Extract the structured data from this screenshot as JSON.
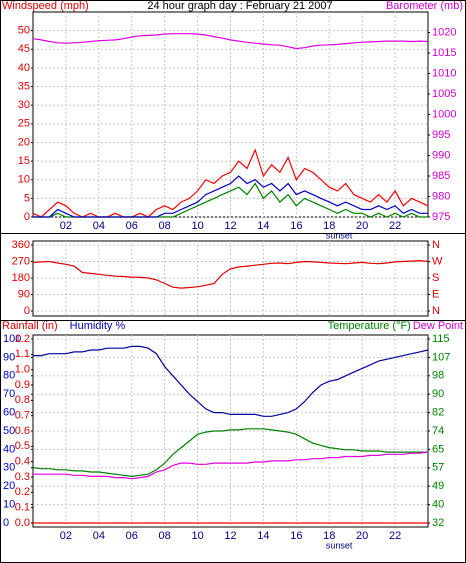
{
  "chart_data": [
    {
      "type": "line",
      "title": "24 hour graph day : February 21 2007",
      "labels": [
        {
          "text": "Windspeed (mph)",
          "color": "#e00000",
          "align": "left"
        },
        {
          "text": "Barometer (mb)",
          "color": "#d000d0",
          "align": "right"
        }
      ],
      "annotations": [
        {
          "text": "sunset",
          "x": 18.6
        }
      ],
      "x": [
        0,
        0.5,
        1,
        1.5,
        2,
        2.5,
        3,
        3.5,
        4,
        4.5,
        5,
        5.5,
        6,
        6.5,
        7,
        7.5,
        8,
        8.5,
        9,
        9.5,
        10,
        10.5,
        11,
        11.5,
        12,
        12.5,
        13,
        13.5,
        14,
        14.5,
        15,
        15.5,
        16,
        16.5,
        17,
        17.5,
        18,
        18.5,
        19,
        19.5,
        20,
        20.5,
        21,
        21.5,
        22,
        22.5,
        23,
        23.5,
        24
      ],
      "xlim": [
        0,
        24
      ],
      "xticks": [
        {
          "value": 2,
          "label": "02"
        },
        {
          "value": 4,
          "label": "04"
        },
        {
          "value": 6,
          "label": "06"
        },
        {
          "value": 8,
          "label": "08"
        },
        10,
        12,
        14,
        16,
        18,
        20,
        22
      ],
      "show_xtick_labels": true,
      "grid": true,
      "axes": [
        {
          "id": "wind",
          "side": "left",
          "color": "#e00000",
          "lim": [
            0,
            55
          ],
          "ticks": [
            0,
            5,
            10,
            15,
            20,
            25,
            30,
            35,
            40,
            45,
            50
          ]
        },
        {
          "id": "baro",
          "side": "right",
          "color": "#d000d0",
          "lim": [
            975,
            1025
          ],
          "ticks": [
            975,
            980,
            985,
            990,
            995,
            1000,
            1005,
            1010,
            1015,
            1020
          ]
        }
      ],
      "series": [
        {
          "axis": "wind",
          "color": "#ff0000",
          "values": [
            1,
            0,
            2,
            4,
            3,
            1,
            0,
            1,
            0,
            0,
            1,
            0,
            0,
            1,
            0,
            2,
            3,
            2,
            4,
            5,
            7,
            10,
            9,
            11,
            12,
            15,
            13,
            18,
            11,
            14,
            12,
            16,
            10,
            13,
            12,
            10,
            8,
            7,
            9,
            6,
            5,
            4,
            6,
            4,
            7,
            3,
            5,
            4,
            3
          ]
        },
        {
          "axis": "wind",
          "color": "#008000",
          "values": [
            0,
            0,
            0,
            1,
            0,
            0,
            0,
            0,
            0,
            0,
            0,
            0,
            0,
            0,
            0,
            0,
            0,
            0,
            1,
            2,
            3,
            4,
            5,
            6,
            7,
            8,
            6,
            9,
            5,
            7,
            4,
            6,
            3,
            5,
            4,
            3,
            2,
            1,
            2,
            1,
            1,
            0,
            1,
            0,
            1,
            0,
            1,
            0,
            0
          ]
        },
        {
          "axis": "wind",
          "color": "#0000c0",
          "values": [
            0,
            0,
            0,
            2,
            1,
            0,
            0,
            0,
            0,
            0,
            0,
            0,
            0,
            0,
            0,
            0,
            1,
            1,
            2,
            3,
            4,
            6,
            7,
            8,
            9,
            11,
            9,
            10,
            8,
            9,
            7,
            9,
            6,
            7,
            6,
            5,
            4,
            3,
            4,
            3,
            2,
            2,
            3,
            2,
            3,
            1,
            2,
            1,
            1
          ]
        },
        {
          "axis": "baro",
          "color": "#e000e0",
          "values": [
            1018.5,
            1018.2,
            1017.8,
            1017.5,
            1017.4,
            1017.5,
            1017.6,
            1017.8,
            1018.0,
            1018.1,
            1018.2,
            1018.5,
            1018.9,
            1019.2,
            1019.3,
            1019.4,
            1019.6,
            1019.7,
            1019.7,
            1019.7,
            1019.6,
            1019.4,
            1019.0,
            1018.6,
            1018.2,
            1017.9,
            1017.6,
            1017.4,
            1017.2,
            1017.0,
            1016.9,
            1016.5,
            1016.1,
            1016.3,
            1016.7,
            1016.9,
            1017.0,
            1017.1,
            1017.3,
            1017.5,
            1017.6,
            1017.7,
            1017.8,
            1017.9,
            1017.9,
            1017.9,
            1017.8,
            1017.9,
            1017.8
          ]
        }
      ]
    },
    {
      "type": "line",
      "x": [
        0,
        0.5,
        1,
        1.5,
        2,
        2.5,
        3,
        3.5,
        4,
        4.5,
        5,
        5.5,
        6,
        6.5,
        7,
        7.5,
        8,
        8.5,
        9,
        9.5,
        10,
        10.5,
        11,
        11.5,
        12,
        12.5,
        13,
        13.5,
        14,
        14.5,
        15,
        15.5,
        16,
        16.5,
        17,
        17.5,
        18,
        18.5,
        19,
        19.5,
        20,
        20.5,
        21,
        21.5,
        22,
        22.5,
        23,
        23.5,
        24
      ],
      "xlim": [
        0,
        24
      ],
      "xticks": [
        2,
        4,
        6,
        8,
        10,
        12,
        14,
        16,
        18,
        20,
        22
      ],
      "show_xtick_labels": false,
      "grid": true,
      "axes": [
        {
          "id": "dir",
          "side": "left",
          "color": "#e00000",
          "lim": [
            0,
            360
          ],
          "ticks": [
            0,
            90,
            180,
            270,
            360
          ]
        },
        {
          "id": "compass",
          "side": "right",
          "color": "#e00000",
          "lim": [
            0,
            360
          ],
          "ticks": [
            {
              "value": 0,
              "label": "N"
            },
            {
              "value": 90,
              "label": "E"
            },
            {
              "value": 180,
              "label": "S"
            },
            {
              "value": 270,
              "label": "W"
            },
            {
              "value": 360,
              "label": "N"
            }
          ]
        }
      ],
      "series": [
        {
          "axis": "dir",
          "color": "#e00000",
          "values": [
            265,
            268,
            270,
            262,
            255,
            245,
            210,
            205,
            200,
            195,
            190,
            188,
            185,
            183,
            180,
            170,
            150,
            130,
            125,
            128,
            132,
            140,
            150,
            200,
            230,
            240,
            245,
            250,
            255,
            260,
            262,
            258,
            265,
            270,
            268,
            265,
            262,
            260,
            258,
            262,
            265,
            260,
            258,
            262,
            268,
            270,
            272,
            275,
            270
          ]
        }
      ]
    },
    {
      "type": "line",
      "labels": [
        {
          "text": "Rainfall (in)",
          "color": "#e00000",
          "align": "left"
        },
        {
          "text": "Humidity %",
          "color": "#0000c0",
          "align": "left"
        },
        {
          "text": "Dew Point",
          "color": "#d000d0",
          "align": "right"
        },
        {
          "text": "Temperature (°F)",
          "color": "#008000",
          "align": "right"
        }
      ],
      "annotations": [
        {
          "text": "sunset",
          "x": 18.6
        }
      ],
      "x": [
        0,
        0.5,
        1,
        1.5,
        2,
        2.5,
        3,
        3.5,
        4,
        4.5,
        5,
        5.5,
        6,
        6.5,
        7,
        7.5,
        8,
        8.5,
        9,
        9.5,
        10,
        10.5,
        11,
        11.5,
        12,
        12.5,
        13,
        13.5,
        14,
        14.5,
        15,
        15.5,
        16,
        16.5,
        17,
        17.5,
        18,
        18.5,
        19,
        19.5,
        20,
        20.5,
        21,
        21.5,
        22,
        22.5,
        23,
        23.5,
        24
      ],
      "xlim": [
        0,
        24
      ],
      "xticks": [
        {
          "value": 2,
          "label": "02"
        },
        {
          "value": 4,
          "label": "04"
        },
        {
          "value": 6,
          "label": "06"
        },
        {
          "value": 8,
          "label": "08"
        },
        10,
        12,
        14,
        16,
        18,
        20,
        22
      ],
      "show_xtick_labels": true,
      "grid": true,
      "axes": [
        {
          "id": "hum",
          "side": "left",
          "color": "#0000c0",
          "lim": [
            0,
            100
          ],
          "ticks": [
            0,
            10,
            20,
            30,
            40,
            50,
            60,
            70,
            80,
            90,
            100
          ]
        },
        {
          "id": "rain",
          "side": "left",
          "color": "#e00000",
          "lim": [
            0,
            1.2
          ],
          "ticks": [
            {
              "value": 0,
              "label": "0.0"
            },
            0.1,
            0.2,
            0.3,
            0.4,
            0.5,
            0.6,
            0.7,
            0.8,
            0.9,
            {
              "value": 1,
              "label": "1.0"
            },
            1.1,
            1.2
          ]
        },
        {
          "id": "temp",
          "side": "right",
          "color": "#008000",
          "lim": [
            32,
            115
          ],
          "ticks": [
            32,
            {
              "value": 40.3,
              "label": "40"
            },
            {
              "value": 48.6,
              "label": "49"
            },
            {
              "value": 56.9,
              "label": "57"
            },
            {
              "value": 65.2,
              "label": "65"
            },
            {
              "value": 73.5,
              "label": "74"
            },
            {
              "value": 81.8,
              "label": "82"
            },
            {
              "value": 90.1,
              "label": "90"
            },
            {
              "value": 98.4,
              "label": "98"
            },
            {
              "value": 106.7,
              "label": "107"
            },
            115
          ]
        }
      ],
      "series": [
        {
          "axis": "rain",
          "color": "#ff0000",
          "values": [
            0,
            0,
            0,
            0,
            0,
            0,
            0,
            0,
            0,
            0,
            0,
            0,
            0,
            0,
            0,
            0,
            0,
            0,
            0,
            0,
            0,
            0,
            0,
            0,
            0,
            0,
            0,
            0,
            0,
            0,
            0,
            0,
            0,
            0,
            0,
            0,
            0,
            0,
            0,
            0,
            0,
            0,
            0,
            0,
            0,
            0,
            0,
            0,
            0
          ]
        },
        {
          "axis": "temp",
          "color": "#008000",
          "values": [
            57,
            56.5,
            56.5,
            56,
            56,
            55.5,
            55.5,
            55,
            55,
            54.5,
            54,
            53.5,
            53,
            53.5,
            54,
            56,
            59,
            63,
            66,
            69,
            72,
            73,
            73.5,
            73.5,
            74,
            74,
            74.5,
            74.5,
            74.5,
            74,
            73.5,
            73,
            72,
            70,
            68,
            67,
            66,
            65.5,
            65,
            65,
            64.5,
            64.5,
            64.5,
            64,
            64,
            64,
            64,
            64,
            64
          ]
        },
        {
          "axis": "temp",
          "color": "#e000e0",
          "values": [
            54,
            54,
            54,
            54,
            54,
            53.5,
            53.5,
            53,
            53,
            53,
            52.5,
            52.5,
            52,
            52.5,
            53,
            55,
            56,
            58,
            59,
            59,
            58.5,
            58.5,
            59,
            59,
            59,
            59,
            59,
            59.5,
            59.5,
            60,
            60,
            60,
            60.5,
            60.5,
            61,
            61,
            61.5,
            61.5,
            62,
            62,
            62,
            62.5,
            62.5,
            63,
            63,
            63,
            63.5,
            63.5,
            64
          ]
        },
        {
          "axis": "hum",
          "color": "#0000a0",
          "values": [
            91,
            91,
            92,
            92,
            92,
            93,
            93,
            94,
            94,
            95,
            95,
            95,
            96,
            96,
            95,
            92,
            85,
            80,
            75,
            70,
            66,
            62,
            60,
            60,
            59,
            59,
            59,
            59,
            58,
            58,
            59,
            60,
            62,
            66,
            71,
            75,
            77,
            78,
            80,
            82,
            84,
            86,
            88,
            89,
            90,
            91,
            92,
            93,
            94
          ]
        }
      ]
    }
  ]
}
